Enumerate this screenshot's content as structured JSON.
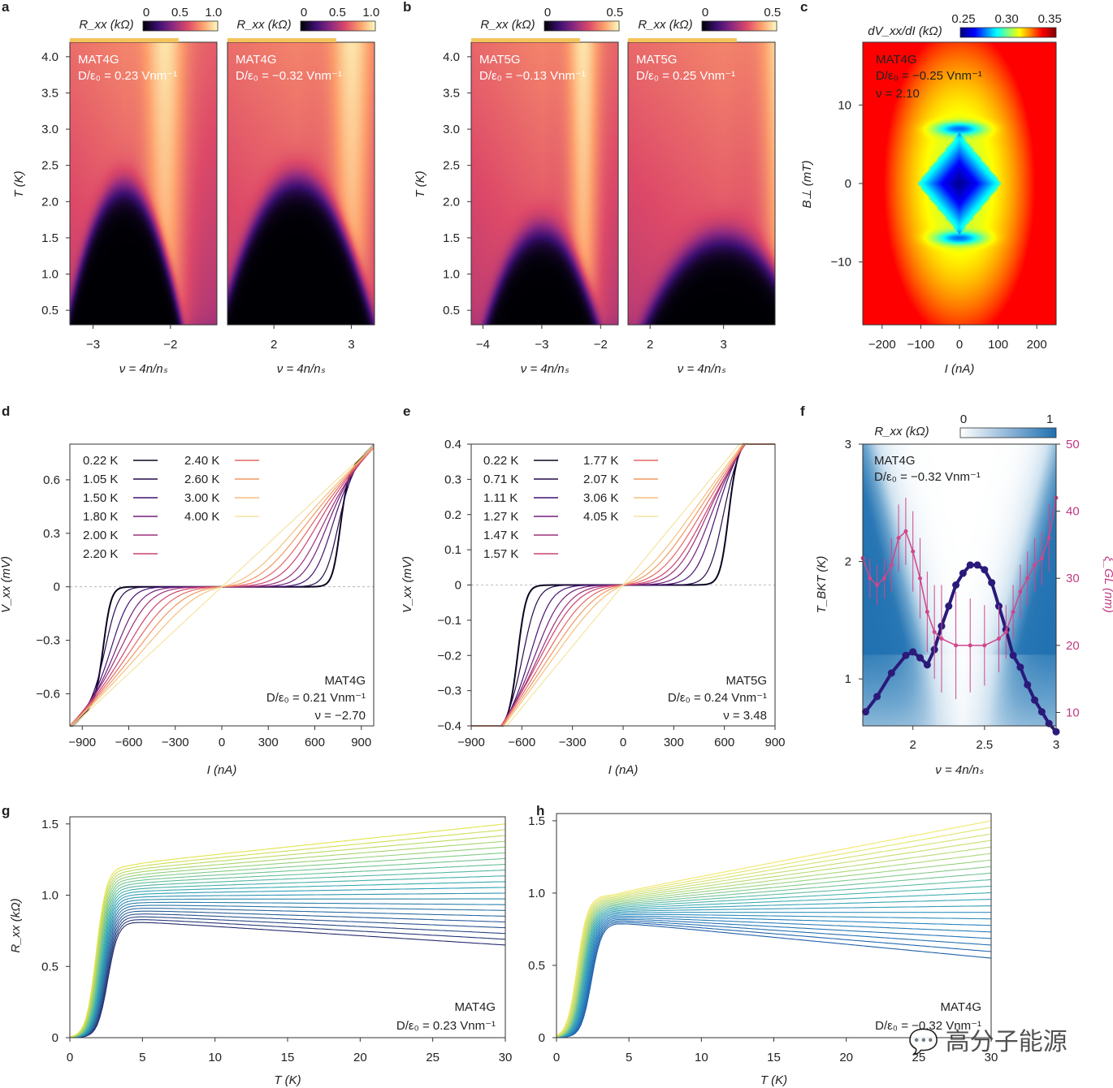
{
  "watermark": {
    "text": "高分子能源",
    "icon": "wechat-bubble-icon"
  },
  "colors": {
    "inferno": [
      "#000004",
      "#3b0f70",
      "#8c2981",
      "#dd4968",
      "#fd9f6c",
      "#fcfdbf"
    ],
    "jet": [
      "#00007f",
      "#0000ff",
      "#00ffff",
      "#ffff00",
      "#ff0000",
      "#7f0000"
    ],
    "blues": [
      "#ffffff",
      "#1f6fb0"
    ]
  },
  "chart_data": [
    {
      "panel": "a",
      "type": "heatmap",
      "titles": [
        "MAT4G",
        "MAT4G"
      ],
      "colorbar": {
        "label": "R_xx (kΩ)",
        "ticks": [
          "0",
          "0.5",
          "1.0"
        ],
        "range": [
          0,
          1.2
        ],
        "cmap": "inferno"
      },
      "ylabel": "T (K)",
      "yticks": [
        "0.5",
        "1.0",
        "1.5",
        "2.0",
        "2.5",
        "3.0",
        "3.5",
        "4.0"
      ],
      "ylim": [
        0.3,
        4.2
      ],
      "subpanels": [
        {
          "label": "MAT4G",
          "disp": "D/ε₀ = 0.23 Vnm⁻¹",
          "xlabel": "ν = 4n/nₛ",
          "xticks": [
            "−3",
            "−2"
          ],
          "xlim": [
            -3.3,
            -1.4
          ],
          "dome_center": -2.6,
          "dome_tc": 2.2,
          "dome_halfwidth": 0.6
        },
        {
          "label": "MAT4G",
          "disp": "D/ε₀ = −0.32 Vnm⁻¹",
          "xlabel": "ν = 4n/nₛ",
          "xticks": [
            "2",
            "3"
          ],
          "xlim": [
            1.4,
            3.3
          ],
          "dome_center": 2.3,
          "dome_tc": 2.3,
          "dome_halfwidth": 0.8
        }
      ]
    },
    {
      "panel": "b",
      "type": "heatmap",
      "colorbar": {
        "label": "R_xx (kΩ)",
        "ticks": [
          "0",
          "0.5"
        ],
        "range": [
          0,
          0.8
        ],
        "cmap": "inferno"
      },
      "ylabel": "T (K)",
      "yticks": [
        "0.5",
        "1.0",
        "1.5",
        "2.0",
        "2.5",
        "3.0",
        "3.5",
        "4.0"
      ],
      "ylim": [
        0.3,
        4.2
      ],
      "subpanels": [
        {
          "label": "MAT5G",
          "disp": "D/ε₀ = −0.13 Vnm⁻¹",
          "xlabel": "ν = 4n/nₛ",
          "xticks": [
            "−4",
            "−3",
            "−2"
          ],
          "xlim": [
            -4.2,
            -1.7
          ],
          "dome_center": -3.0,
          "dome_tc": 1.6,
          "dome_halfwidth": 0.8
        },
        {
          "label": "MAT5G",
          "disp": "D/ε₀ = 0.25 Vnm⁻¹",
          "xlabel": "ν = 4n/nₛ",
          "xticks": [
            "2",
            "3"
          ],
          "xlim": [
            1.7,
            3.7
          ],
          "dome_center": 3.0,
          "dome_tc": 1.5,
          "dome_halfwidth": 0.9
        }
      ]
    },
    {
      "panel": "c",
      "type": "heatmap",
      "label": "MAT4G",
      "disp": "D/ε₀ = −0.25 Vnm⁻¹",
      "filling": "ν = 2.10",
      "colorbar": {
        "label": "dV_xx/dI (kΩ)",
        "ticks": [
          "0.25",
          "0.30",
          "0.35"
        ],
        "range": [
          0.23,
          0.37
        ],
        "cmap": "jet"
      },
      "xlabel": "I (nA)",
      "xticks": [
        "−200",
        "−100",
        "0",
        "100",
        "200"
      ],
      "xlim": [
        -250,
        250
      ],
      "ylabel": "B⊥ (mT)",
      "yticks": [
        "10",
        "0",
        "−10"
      ],
      "ylim": [
        -18,
        18
      ]
    },
    {
      "panel": "d",
      "type": "line",
      "title": "MAT4G",
      "disp": "D/ε₀ = 0.21 Vnm⁻¹",
      "filling": "ν = −2.70",
      "xlabel": "I (nA)",
      "ylabel": "V_xx (mV)",
      "xticks": [
        "−900",
        "−600",
        "−300",
        "0",
        "300",
        "600",
        "900"
      ],
      "xlim": [
        -980,
        980
      ],
      "yticks": [
        "0.6",
        "0.3",
        "0",
        "−0.3",
        "−0.6"
      ],
      "ylim": [
        -0.78,
        0.8
      ],
      "legend": [
        "0.22 K",
        "1.05 K",
        "1.50 K",
        "1.80 K",
        "2.00 K",
        "2.20 K",
        "2.40 K",
        "2.60 K",
        "3.00 K",
        "4.00 K"
      ],
      "critical_current": [
        760,
        740,
        690,
        640,
        590,
        520,
        440,
        340,
        200,
        0
      ],
      "resistance_slope": 0.00081
    },
    {
      "panel": "e",
      "type": "line",
      "title": "MAT5G",
      "disp": "D/ε₀ = 0.24 Vnm⁻¹",
      "filling": "ν = 3.48",
      "xlabel": "I (nA)",
      "ylabel": "V_xx (mV)",
      "xticks": [
        "−900",
        "−600",
        "−300",
        "0",
        "300",
        "600",
        "900"
      ],
      "xlim": [
        -900,
        900
      ],
      "yticks": [
        "0.4",
        "0.3",
        "0.2",
        "0.1",
        "0",
        "−0.1",
        "−0.2",
        "−0.3",
        "−0.4"
      ],
      "ylim": [
        -0.4,
        0.4
      ],
      "legend": [
        "0.22 K",
        "0.71 K",
        "1.11 K",
        "1.27 K",
        "1.47 K",
        "1.57 K",
        "1.77 K",
        "2.07 K",
        "3.06 K",
        "4.05 K"
      ],
      "critical_current": [
        620,
        580,
        520,
        470,
        420,
        380,
        310,
        220,
        100,
        0
      ],
      "resistance_slope": 0.00058
    },
    {
      "panel": "f",
      "type": "scatter",
      "title": "MAT4G",
      "disp": "D/ε₀ = −0.32 Vnm⁻¹",
      "colorbar": {
        "label": "R_xx (kΩ)",
        "ticks": [
          "0",
          "1"
        ]
      },
      "xlabel": "ν = 4n/nₛ",
      "xticks": [
        "2",
        "2.5",
        "3"
      ],
      "xlim": [
        1.65,
        3.0
      ],
      "ylabel": "T_BKT (K)",
      "yticks": [
        "1",
        "2",
        "3"
      ],
      "ylim": [
        0.6,
        3.0
      ],
      "y2label": "ξ_GL (nm)",
      "y2ticks": [
        "10",
        "20",
        "30",
        "40",
        "50"
      ],
      "y2lim": [
        8,
        50
      ],
      "series": [
        {
          "name": "T_BKT",
          "x": [
            1.67,
            1.75,
            1.85,
            1.95,
            2.0,
            2.05,
            2.1,
            2.15,
            2.2,
            2.25,
            2.3,
            2.35,
            2.4,
            2.45,
            2.5,
            2.55,
            2.6,
            2.65,
            2.7,
            2.75,
            2.8,
            2.85,
            2.9,
            2.95,
            3.0
          ],
          "y": [
            0.72,
            0.85,
            1.05,
            1.2,
            1.23,
            1.18,
            1.12,
            1.25,
            1.45,
            1.62,
            1.8,
            1.9,
            1.97,
            1.97,
            1.93,
            1.82,
            1.62,
            1.42,
            1.2,
            1.1,
            0.95,
            0.82,
            0.72,
            0.62,
            0.55
          ]
        },
        {
          "name": "ξ_GL",
          "x": [
            1.65,
            1.7,
            1.75,
            1.8,
            1.85,
            1.9,
            1.95,
            2.0,
            2.05,
            2.1,
            2.15,
            2.2,
            2.3,
            2.4,
            2.5,
            2.6,
            2.65,
            2.7,
            2.75,
            2.8,
            2.85,
            2.9,
            2.95,
            3.0
          ],
          "y": [
            33,
            30,
            29,
            30,
            32,
            36,
            37,
            34,
            30,
            25,
            22,
            21,
            20,
            20,
            20,
            21,
            22,
            25,
            28,
            30,
            32,
            33,
            36,
            42
          ],
          "err": [
            3,
            3,
            3,
            3,
            4,
            5,
            5,
            6,
            6,
            6,
            7,
            8,
            8,
            7,
            6,
            5,
            4,
            4,
            4,
            4,
            4,
            4,
            5,
            6
          ]
        }
      ]
    },
    {
      "panel": "g",
      "type": "line",
      "title": "MAT4G",
      "disp": "D/ε₀ = 0.23 Vnm⁻¹",
      "xlabel": "T (K)",
      "xticks": [
        "0",
        "5",
        "10",
        "15",
        "20",
        "25",
        "30"
      ],
      "xlim": [
        0,
        30
      ],
      "ylabel": "R_xx (kΩ)",
      "yticks": [
        "0",
        "0.5",
        "1.0",
        "1.5"
      ],
      "ylim": [
        0,
        1.55
      ],
      "n_curves": 22,
      "cmap": "viridis-blue-yellow",
      "Rn_plateau": [
        0.82,
        1.22
      ],
      "R30": [
        0.65,
        1.5
      ],
      "Tc": [
        1.8,
        2.6
      ]
    },
    {
      "panel": "h",
      "type": "line",
      "title": "MAT4G",
      "disp": "D/ε₀ = −0.32 Vnm⁻¹",
      "xlabel": "T (K)",
      "xticks": [
        "0",
        "5",
        "10",
        "15",
        "20",
        "25",
        "30"
      ],
      "xlim": [
        0,
        30
      ],
      "ylabel": "R_xx (kΩ)",
      "yticks": [
        "0",
        "0.5",
        "1.0",
        "1.5"
      ],
      "ylim": [
        0,
        1.55
      ],
      "n_curves": 22,
      "cmap": "blue-to-yellow",
      "Rn_plateau": [
        0.8,
        1.0
      ],
      "R30": [
        0.55,
        1.5
      ],
      "Tc": [
        1.4,
        2.4
      ]
    }
  ]
}
